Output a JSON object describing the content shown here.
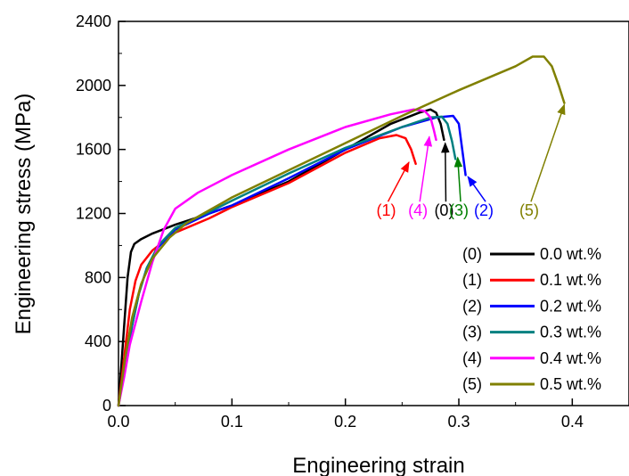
{
  "chart_data": {
    "type": "line",
    "xlabel": "Engineering strain",
    "ylabel": "Engineering stress (MPa)",
    "xlim": [
      0.0,
      0.45
    ],
    "ylim": [
      0,
      2400
    ],
    "x_ticks": [
      0.0,
      0.1,
      0.2,
      0.3,
      0.4
    ],
    "x_tick_labels": [
      "0.0",
      "0.1",
      "0.2",
      "0.3",
      "0.4"
    ],
    "y_ticks": [
      0,
      400,
      800,
      1200,
      1600,
      2000,
      2400
    ],
    "y_tick_labels": [
      "0",
      "400",
      "800",
      "1200",
      "1600",
      "2000",
      "2400"
    ],
    "grid": false,
    "legend_position": "bottom-right",
    "series": [
      {
        "name": "0.0 wt.%",
        "tag": "(0)",
        "color": "#000000",
        "points": [
          [
            0,
            0
          ],
          [
            0.004,
            400
          ],
          [
            0.008,
            800
          ],
          [
            0.011,
            960
          ],
          [
            0.014,
            1010
          ],
          [
            0.02,
            1040
          ],
          [
            0.03,
            1075
          ],
          [
            0.05,
            1130
          ],
          [
            0.08,
            1200
          ],
          [
            0.1,
            1250
          ],
          [
            0.15,
            1400
          ],
          [
            0.2,
            1600
          ],
          [
            0.24,
            1760
          ],
          [
            0.265,
            1830
          ],
          [
            0.275,
            1850
          ],
          [
            0.28,
            1830
          ],
          [
            0.284,
            1760
          ],
          [
            0.287,
            1660
          ]
        ]
      },
      {
        "name": "0.1 wt.%",
        "tag": "(1)",
        "color": "#ff0000",
        "points": [
          [
            0,
            0
          ],
          [
            0.005,
            300
          ],
          [
            0.01,
            600
          ],
          [
            0.015,
            780
          ],
          [
            0.02,
            880
          ],
          [
            0.03,
            970
          ],
          [
            0.05,
            1080
          ],
          [
            0.08,
            1170
          ],
          [
            0.1,
            1240
          ],
          [
            0.15,
            1390
          ],
          [
            0.2,
            1580
          ],
          [
            0.23,
            1670
          ],
          [
            0.245,
            1690
          ],
          [
            0.253,
            1670
          ],
          [
            0.258,
            1600
          ],
          [
            0.262,
            1510
          ]
        ]
      },
      {
        "name": "0.2 wt.%",
        "tag": "(2)",
        "color": "#0000ff",
        "points": [
          [
            0,
            0
          ],
          [
            0.006,
            250
          ],
          [
            0.012,
            500
          ],
          [
            0.018,
            700
          ],
          [
            0.025,
            860
          ],
          [
            0.035,
            990
          ],
          [
            0.05,
            1100
          ],
          [
            0.08,
            1200
          ],
          [
            0.1,
            1250
          ],
          [
            0.15,
            1420
          ],
          [
            0.2,
            1600
          ],
          [
            0.25,
            1740
          ],
          [
            0.28,
            1800
          ],
          [
            0.295,
            1810
          ],
          [
            0.3,
            1760
          ],
          [
            0.303,
            1600
          ],
          [
            0.306,
            1440
          ]
        ]
      },
      {
        "name": "0.3 wt.%",
        "tag": "(3)",
        "color": "#008080",
        "points": [
          [
            0,
            0
          ],
          [
            0.006,
            250
          ],
          [
            0.012,
            500
          ],
          [
            0.018,
            700
          ],
          [
            0.025,
            860
          ],
          [
            0.035,
            1000
          ],
          [
            0.05,
            1110
          ],
          [
            0.08,
            1210
          ],
          [
            0.1,
            1280
          ],
          [
            0.15,
            1450
          ],
          [
            0.2,
            1610
          ],
          [
            0.25,
            1740
          ],
          [
            0.275,
            1800
          ],
          [
            0.285,
            1805
          ],
          [
            0.29,
            1760
          ],
          [
            0.294,
            1650
          ],
          [
            0.297,
            1540
          ]
        ]
      },
      {
        "name": "0.4 wt.%",
        "tag": "(4)",
        "color": "#ff00ff",
        "points": [
          [
            0,
            0
          ],
          [
            0.005,
            180
          ],
          [
            0.01,
            380
          ],
          [
            0.02,
            650
          ],
          [
            0.03,
            900
          ],
          [
            0.04,
            1100
          ],
          [
            0.05,
            1230
          ],
          [
            0.07,
            1330
          ],
          [
            0.1,
            1440
          ],
          [
            0.15,
            1600
          ],
          [
            0.2,
            1740
          ],
          [
            0.24,
            1820
          ],
          [
            0.26,
            1850
          ],
          [
            0.27,
            1840
          ],
          [
            0.275,
            1800
          ],
          [
            0.278,
            1720
          ],
          [
            0.28,
            1660
          ]
        ]
      },
      {
        "name": "0.5 wt.%",
        "tag": "(5)",
        "color": "#808000",
        "points": [
          [
            0,
            0
          ],
          [
            0.006,
            300
          ],
          [
            0.012,
            550
          ],
          [
            0.02,
            760
          ],
          [
            0.03,
            920
          ],
          [
            0.045,
            1050
          ],
          [
            0.06,
            1140
          ],
          [
            0.08,
            1220
          ],
          [
            0.1,
            1300
          ],
          [
            0.15,
            1470
          ],
          [
            0.2,
            1640
          ],
          [
            0.25,
            1810
          ],
          [
            0.3,
            1970
          ],
          [
            0.35,
            2120
          ],
          [
            0.365,
            2180
          ],
          [
            0.375,
            2180
          ],
          [
            0.382,
            2120
          ],
          [
            0.388,
            2000
          ],
          [
            0.393,
            1890
          ]
        ]
      }
    ],
    "annotations": [
      {
        "text": "(1)",
        "color": "#ff0000",
        "label_at": [
          0.236,
          1185
        ],
        "arrow_tip": [
          0.256,
          1520
        ]
      },
      {
        "text": "(4)",
        "color": "#ff00ff",
        "label_at": [
          0.264,
          1185
        ],
        "arrow_tip": [
          0.274,
          1680
        ]
      },
      {
        "text": "(0)",
        "color": "#000000",
        "label_at": [
          0.287,
          1185
        ],
        "arrow_tip": [
          0.288,
          1640
        ]
      },
      {
        "text": "(3)",
        "color": "#008000",
        "label_at": [
          0.3,
          1185
        ],
        "arrow_tip": [
          0.299,
          1550
        ]
      },
      {
        "text": "(2)",
        "color": "#0000ff",
        "label_at": [
          0.322,
          1185
        ],
        "arrow_tip": [
          0.308,
          1430
        ]
      },
      {
        "text": "(5)",
        "color": "#808000",
        "label_at": [
          0.362,
          1185
        ],
        "arrow_tip": [
          0.393,
          1880
        ]
      }
    ]
  }
}
